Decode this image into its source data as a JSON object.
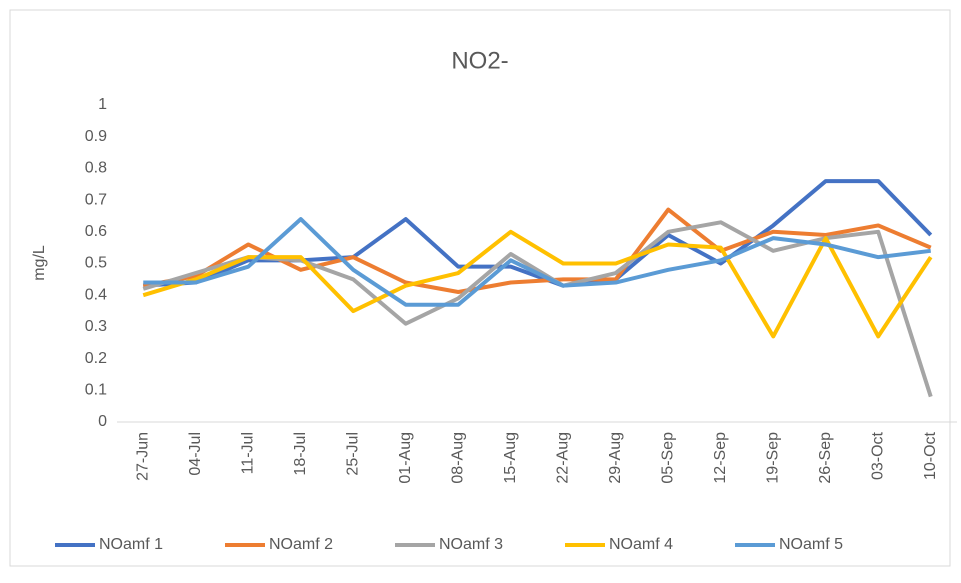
{
  "chart_data": {
    "type": "line",
    "title": "NO2-",
    "y_label": "mg/L",
    "categories": [
      "27-Jun",
      "04-Jul",
      "11-Jul",
      "18-Jul",
      "25-Jul",
      "01-Aug",
      "08-Aug",
      "15-Aug",
      "22-Aug",
      "29-Aug",
      "05-Sep",
      "12-Sep",
      "19-Sep",
      "26-Sep",
      "03-Oct",
      "10-Oct"
    ],
    "series": [
      {
        "name": "NOamf 1",
        "color": "#4472c4",
        "values": [
          0.43,
          0.44,
          0.51,
          0.51,
          0.52,
          0.64,
          0.49,
          0.49,
          0.43,
          0.45,
          0.59,
          0.5,
          0.62,
          0.76,
          0.76,
          0.59
        ]
      },
      {
        "name": "NOamf 2",
        "color": "#ed7d31",
        "values": [
          0.43,
          0.46,
          0.56,
          0.48,
          0.52,
          0.44,
          0.41,
          0.44,
          0.45,
          0.45,
          0.67,
          0.54,
          0.6,
          0.59,
          0.62,
          0.55
        ]
      },
      {
        "name": "NOamf 3",
        "color": "#a5a5a5",
        "values": [
          0.42,
          0.47,
          0.52,
          0.51,
          0.45,
          0.31,
          0.39,
          0.53,
          0.43,
          0.47,
          0.6,
          0.63,
          0.54,
          0.58,
          0.6,
          0.08
        ]
      },
      {
        "name": "NOamf 4",
        "color": "#ffc000",
        "values": [
          0.4,
          0.45,
          0.52,
          0.52,
          0.35,
          0.43,
          0.47,
          0.6,
          0.5,
          0.5,
          0.56,
          0.55,
          0.27,
          0.58,
          0.27,
          0.52
        ]
      },
      {
        "name": "NOamf 5",
        "color": "#5b9bd5",
        "values": [
          0.44,
          0.44,
          0.49,
          0.64,
          0.48,
          0.37,
          0.37,
          0.51,
          0.43,
          0.44,
          0.48,
          0.51,
          0.58,
          0.56,
          0.52,
          0.54
        ]
      }
    ],
    "ylim": [
      0,
      1
    ],
    "yticks": [
      0,
      0.1,
      0.2,
      0.3,
      0.4,
      0.5,
      0.6,
      0.7,
      0.8,
      0.9,
      1
    ],
    "grid": false,
    "legend": "bottom"
  }
}
